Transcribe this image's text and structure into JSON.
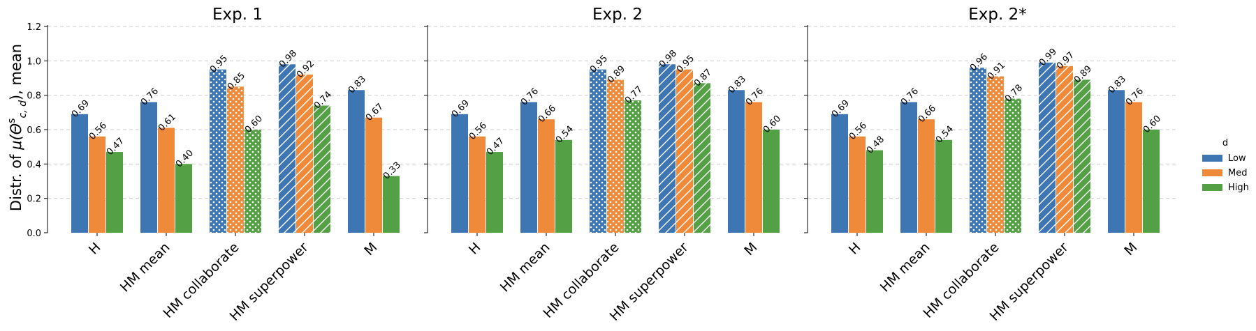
{
  "ylabel_prefix": "Distr. of ",
  "ylabel_math": "μ(Θ",
  "ylabel_sup": "s",
  "ylabel_sub": "c, d",
  "ylabel_suffix": "), mean",
  "legend": {
    "title": "d",
    "entries": [
      "Low",
      "Med",
      "High"
    ]
  },
  "colors": {
    "Low": "#3d76b2",
    "Med": "#ee8a39",
    "High": "#53a144"
  },
  "chart_data": [
    {
      "type": "bar",
      "title": "Exp. 1",
      "categories": [
        "H",
        "HM mean",
        "HM collaborate",
        "HM superpower",
        "M"
      ],
      "patterns": [
        "none",
        "none",
        "dots",
        "hatch",
        "none"
      ],
      "series": [
        {
          "name": "Low",
          "values": [
            0.69,
            0.76,
            0.95,
            0.98,
            0.83
          ]
        },
        {
          "name": "Med",
          "values": [
            0.56,
            0.61,
            0.85,
            0.92,
            0.67
          ]
        },
        {
          "name": "High",
          "values": [
            0.47,
            0.4,
            0.6,
            0.74,
            0.33
          ]
        }
      ],
      "ylim": [
        0,
        1.2
      ],
      "yticks": [
        "0.0",
        "0.2",
        "0.4",
        "0.6",
        "0.8",
        "1.0",
        "1.2"
      ],
      "grid": true
    },
    {
      "type": "bar",
      "title": "Exp. 2",
      "categories": [
        "H",
        "HM mean",
        "HM collaborate",
        "HM superpower",
        "M"
      ],
      "patterns": [
        "none",
        "none",
        "dots",
        "hatch",
        "none"
      ],
      "series": [
        {
          "name": "Low",
          "values": [
            0.69,
            0.76,
            0.95,
            0.98,
            0.83
          ]
        },
        {
          "name": "Med",
          "values": [
            0.56,
            0.66,
            0.89,
            0.95,
            0.76
          ]
        },
        {
          "name": "High",
          "values": [
            0.47,
            0.54,
            0.77,
            0.87,
            0.6
          ]
        }
      ],
      "ylim": [
        0,
        1.2
      ],
      "grid": true
    },
    {
      "type": "bar",
      "title": "Exp. 2*",
      "categories": [
        "H",
        "HM mean",
        "HM collaborate",
        "HM superpower",
        "M"
      ],
      "patterns": [
        "none",
        "none",
        "dots",
        "hatch",
        "none"
      ],
      "series": [
        {
          "name": "Low",
          "values": [
            0.69,
            0.76,
            0.96,
            0.99,
            0.83
          ]
        },
        {
          "name": "Med",
          "values": [
            0.56,
            0.66,
            0.91,
            0.97,
            0.76
          ]
        },
        {
          "name": "High",
          "values": [
            0.48,
            0.54,
            0.78,
            0.89,
            0.6
          ]
        }
      ],
      "ylim": [
        0,
        1.2
      ],
      "grid": true
    }
  ]
}
